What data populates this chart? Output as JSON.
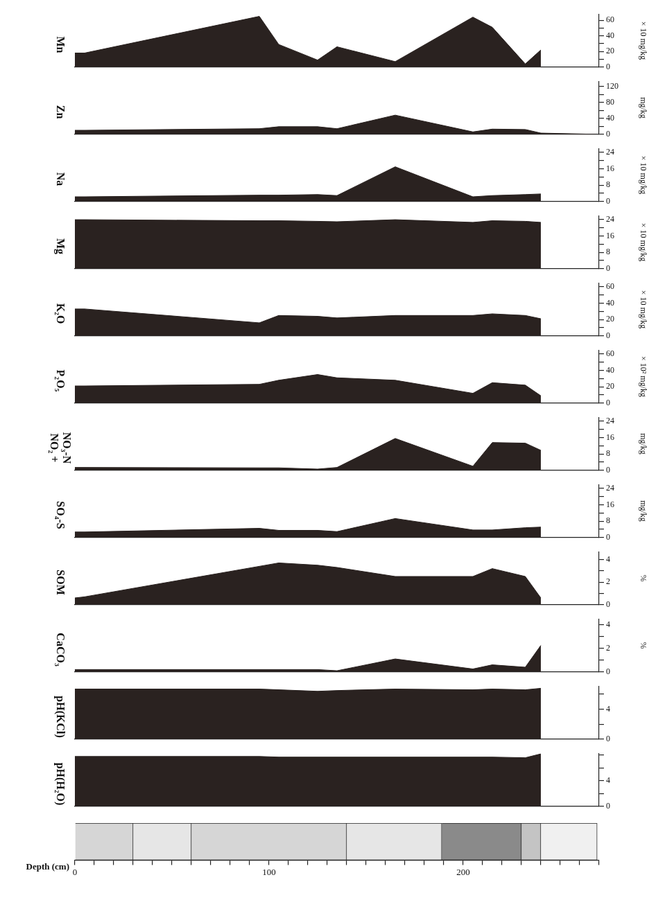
{
  "chart_data": [
    {
      "type": "area",
      "title": "Mn",
      "ylabel": "× 10 mg/kg",
      "color": "#2a2220",
      "x": [
        0,
        5,
        95,
        105,
        125,
        135,
        165,
        205,
        215,
        232,
        240
      ],
      "values": [
        18,
        18,
        65,
        29,
        9,
        26,
        7,
        64,
        51,
        4,
        22
      ],
      "xlim": [
        0,
        270
      ],
      "ylim": [
        0,
        68
      ],
      "yticks": [
        0,
        {
          "value": 10,
          "label": null
        },
        20,
        {
          "value": 30,
          "label": null
        },
        40,
        {
          "value": 50,
          "label": null
        },
        60
      ],
      "tick_labels": "y",
      "marker": "none"
    },
    {
      "type": "area",
      "title": "Zn",
      "ylabel": "mg/kg",
      "color": "#2a2220",
      "x": [
        0,
        5,
        95,
        105,
        125,
        135,
        165,
        205,
        215,
        232,
        240,
        268
      ],
      "values": [
        10,
        10,
        14,
        19,
        19,
        14,
        48,
        6,
        13,
        12,
        3,
        0
      ],
      "xlim": [
        0,
        270
      ],
      "ylim": [
        0,
        133
      ],
      "yticks": [
        0,
        {
          "value": 20,
          "label": null
        },
        40,
        {
          "value": 60,
          "label": null
        },
        80,
        {
          "value": 100,
          "label": null
        },
        120
      ],
      "tick_labels": "y",
      "marker": "none"
    },
    {
      "type": "area",
      "title": "Na",
      "ylabel": "× 10 mg/kg",
      "color": "#2a2220",
      "x": [
        0,
        5,
        95,
        105,
        125,
        135,
        165,
        205,
        215,
        232,
        240
      ],
      "values": [
        2.3,
        2.3,
        3.1,
        3.1,
        3.4,
        2.9,
        17,
        2.3,
        2.9,
        3.4,
        3.7
      ],
      "xlim": [
        0,
        270
      ],
      "ylim": [
        0,
        26
      ],
      "yticks": [
        0,
        {
          "value": 4,
          "label": null
        },
        8,
        {
          "value": 12,
          "label": null
        },
        16,
        {
          "value": 20,
          "label": null
        },
        24
      ],
      "tick_labels": "y",
      "marker": "none"
    },
    {
      "type": "area",
      "title": "Mg",
      "ylabel": "× 10 mg/kg",
      "color": "#2a2220",
      "x": [
        0,
        5,
        95,
        105,
        125,
        135,
        165,
        205,
        215,
        232,
        240
      ],
      "values": [
        24,
        24,
        23.5,
        23.5,
        23.2,
        23,
        24,
        22.7,
        23.5,
        23.2,
        22.7
      ],
      "xlim": [
        0,
        270
      ],
      "ylim": [
        0,
        26
      ],
      "yticks": [
        0,
        {
          "value": 4,
          "label": null
        },
        8,
        {
          "value": 12,
          "label": null
        },
        16,
        {
          "value": 20,
          "label": null
        },
        24
      ],
      "tick_labels": "y",
      "marker": "none"
    },
    {
      "type": "area",
      "title": "K₂O",
      "ylabel": "× 10 mg/kg",
      "color": "#2a2220",
      "x": [
        0,
        5,
        95,
        105,
        125,
        135,
        165,
        205,
        215,
        232,
        240
      ],
      "values": [
        33,
        33,
        16,
        25,
        24,
        22,
        25,
        25,
        27,
        25,
        21
      ],
      "xlim": [
        0,
        270
      ],
      "ylim": [
        0,
        65
      ],
      "yticks": [
        0,
        {
          "value": 10,
          "label": null
        },
        20,
        {
          "value": 30,
          "label": null
        },
        40,
        {
          "value": 50,
          "label": null
        },
        60
      ],
      "tick_labels": "y",
      "marker": "none"
    },
    {
      "type": "area",
      "title": "P₂O₅",
      "ylabel": "× 10² mg/kg",
      "color": "#2a2220",
      "x": [
        0,
        5,
        95,
        105,
        125,
        135,
        165,
        205,
        215,
        232,
        240
      ],
      "values": [
        21,
        21,
        23,
        28,
        35,
        31,
        28,
        12,
        25,
        22,
        9
      ],
      "xlim": [
        0,
        270
      ],
      "ylim": [
        0,
        65
      ],
      "yticks": [
        0,
        {
          "value": 10,
          "label": null
        },
        20,
        {
          "value": 30,
          "label": null
        },
        40,
        {
          "value": 50,
          "label": null
        },
        60
      ],
      "tick_labels": "y",
      "marker": "none"
    },
    {
      "type": "area",
      "title": "NO₂ + NO₃-N",
      "ylabel": "mg/kg",
      "color": "#2a2220",
      "x": [
        0,
        5,
        95,
        105,
        125,
        135,
        165,
        205,
        215,
        232,
        240
      ],
      "values": [
        1.4,
        1.4,
        1.2,
        1.2,
        0.6,
        1.4,
        15.6,
        2,
        13.6,
        13.3,
        9.8
      ],
      "xlim": [
        0,
        270
      ],
      "ylim": [
        0,
        26
      ],
      "yticks": [
        0,
        {
          "value": 4,
          "label": null
        },
        8,
        {
          "value": 12,
          "label": null
        },
        16,
        {
          "value": 20,
          "label": null
        },
        24
      ],
      "tick_labels": "y",
      "marker": "none"
    },
    {
      "type": "area",
      "title": "SO₄-S",
      "ylabel": "mg/kg",
      "color": "#2a2220",
      "x": [
        0,
        5,
        95,
        105,
        125,
        135,
        165,
        205,
        215,
        232,
        240
      ],
      "values": [
        2.7,
        2.7,
        4.5,
        3.5,
        3.5,
        2.9,
        9.3,
        3.7,
        3.7,
        4.8,
        5.1
      ],
      "xlim": [
        0,
        270
      ],
      "ylim": [
        0,
        26
      ],
      "yticks": [
        0,
        {
          "value": 4,
          "label": null
        },
        8,
        {
          "value": 12,
          "label": null
        },
        16,
        {
          "value": 20,
          "label": null
        },
        24
      ],
      "tick_labels": "y",
      "marker": "none"
    },
    {
      "type": "area",
      "title": "SOM",
      "ylabel": "%",
      "color": "#2a2220",
      "x": [
        0,
        5,
        95,
        105,
        125,
        135,
        165,
        205,
        215,
        232,
        240
      ],
      "values": [
        0.6,
        0.7,
        3.4,
        3.7,
        3.5,
        3.3,
        2.5,
        2.5,
        3.2,
        2.5,
        0.6
      ],
      "xlim": [
        0,
        270
      ],
      "ylim": [
        0,
        4.7
      ],
      "yticks": [
        0,
        {
          "value": 1,
          "label": null
        },
        2,
        {
          "value": 3,
          "label": null
        },
        4
      ],
      "tick_labels": "y",
      "marker": "none"
    },
    {
      "type": "area",
      "title": "CaCO₃",
      "ylabel": "%",
      "color": "#2a2220",
      "x": [
        0,
        5,
        95,
        105,
        125,
        135,
        165,
        205,
        215,
        232,
        240
      ],
      "values": [
        0.2,
        0.2,
        0.2,
        0.2,
        0.2,
        0.1,
        1.1,
        0.25,
        0.6,
        0.4,
        2.25
      ],
      "xlim": [
        0,
        270
      ],
      "ylim": [
        0,
        4.5
      ],
      "yticks": [
        0,
        {
          "value": 1,
          "label": null
        },
        2,
        {
          "value": 3,
          "label": null
        },
        4
      ],
      "tick_labels": "y",
      "marker": "none"
    },
    {
      "type": "area",
      "title": "pH(KCl)",
      "color": "#2a2220",
      "x": [
        0,
        5,
        95,
        105,
        125,
        135,
        165,
        205,
        215,
        232,
        240
      ],
      "values": [
        6.7,
        6.7,
        6.7,
        6.6,
        6.4,
        6.5,
        6.7,
        6.6,
        6.7,
        6.6,
        6.8
      ],
      "xlim": [
        0,
        270
      ],
      "ylim": [
        0,
        7.1
      ],
      "yticks": [
        0,
        {
          "value": 2,
          "label": null
        },
        4,
        {
          "value": 6,
          "label": null
        }
      ],
      "tick_labels": "y",
      "marker": "none"
    },
    {
      "type": "area",
      "title": "pH(H₂O)",
      "color": "#2a2220",
      "x": [
        0,
        5,
        95,
        105,
        125,
        135,
        165,
        205,
        215,
        232,
        240
      ],
      "values": [
        7.8,
        7.8,
        7.8,
        7.7,
        7.7,
        7.7,
        7.7,
        7.7,
        7.7,
        7.6,
        8.2
      ],
      "xlim": [
        0,
        270
      ],
      "ylim": [
        0,
        8.3
      ],
      "yticks": [
        0,
        {
          "value": 2,
          "label": null
        },
        4,
        {
          "value": 6,
          "label": null
        },
        {
          "value": 8,
          "label": null
        }
      ],
      "tick_labels": "y",
      "marker": "none"
    },
    {
      "type": "bar",
      "orientation": "horizontal",
      "stacked": true,
      "xlabel": "Depth (cm)",
      "categories": [
        null
      ],
      "series": [
        {
          "color": "#d6d6d6",
          "values": [
            30
          ]
        },
        {
          "color": "#e6e6e6",
          "values": [
            30
          ]
        },
        {
          "color": "#d6d6d6",
          "values": [
            80
          ]
        },
        {
          "color": "#e6e6e6",
          "values": [
            49
          ]
        },
        {
          "color": "#8a8a8a",
          "values": [
            41
          ]
        },
        {
          "color": "#c4c4c4",
          "values": [
            10
          ]
        },
        {
          "color": "#f0f0f0",
          "values": [
            29
          ]
        }
      ],
      "xlim": [
        0,
        270
      ],
      "xticks": [
        0,
        {
          "value": 10,
          "label": null
        },
        {
          "value": 20,
          "label": null
        },
        {
          "value": 30,
          "label": null
        },
        {
          "value": 40,
          "label": null
        },
        {
          "value": 50,
          "label": null
        },
        {
          "value": 60,
          "label": null
        },
        {
          "value": 70,
          "label": null
        },
        {
          "value": 80,
          "label": null
        },
        {
          "value": 90,
          "label": null
        },
        100,
        {
          "value": 110,
          "label": null
        },
        {
          "value": 120,
          "label": null
        },
        {
          "value": 130,
          "label": null
        },
        {
          "value": 140,
          "label": null
        },
        {
          "value": 150,
          "label": null
        },
        {
          "value": 160,
          "label": null
        },
        {
          "value": 170,
          "label": null
        },
        {
          "value": 180,
          "label": null
        },
        {
          "value": 190,
          "label": null
        },
        200,
        {
          "value": 210,
          "label": null
        },
        {
          "value": 220,
          "label": null
        },
        {
          "value": 230,
          "label": null
        },
        {
          "value": 240,
          "label": null
        },
        {
          "value": 250,
          "label": null
        },
        {
          "value": 260,
          "label": null
        },
        {
          "value": 270,
          "label": null
        }
      ],
      "tick_labels": "x"
    }
  ]
}
